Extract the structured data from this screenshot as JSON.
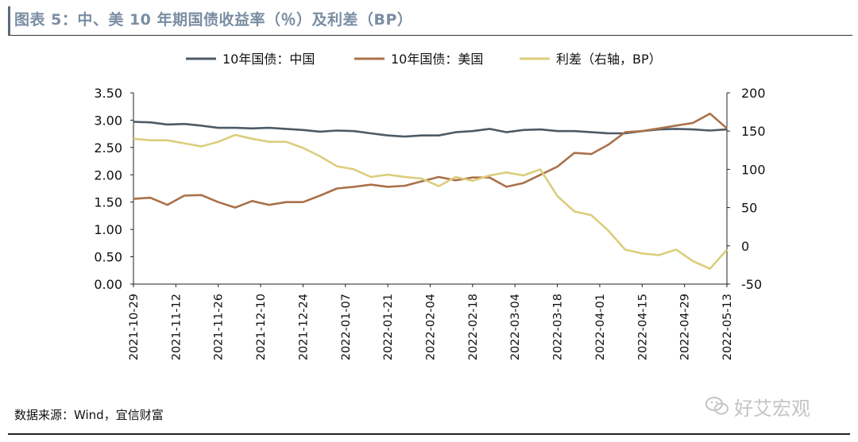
{
  "header": {
    "title": "图表 5：中、美 10 年期国债收益率（％）及利差（BP）"
  },
  "footer": {
    "source": "数据来源：Wind，宜信财富",
    "watermark": "好艾宏观",
    "watermark_icon": "wechat-icon"
  },
  "colors": {
    "china": "#4d5a66",
    "us": "#a9714a",
    "spread": "#dccd7c",
    "axis": "#222222"
  },
  "chart_data": {
    "type": "line",
    "title": "图表 5：中、美 10 年期国债收益率（％）及利差（BP）",
    "legend": [
      "10年国债：中国",
      "10年国债：美国",
      "利差（右轴，BP）"
    ],
    "legend_position": "top-center",
    "grid": false,
    "x_ticks": [
      "2021-10-29",
      "2021-11-12",
      "2021-11-26",
      "2021-12-10",
      "2021-12-24",
      "2022-01-07",
      "2022-01-21",
      "2022-02-04",
      "2022-02-18",
      "2022-03-04",
      "2022-03-18",
      "2022-04-01",
      "2022-04-15",
      "2022-04-29",
      "2022-05-13"
    ],
    "y_left": {
      "min": 0,
      "max": 3.5,
      "ticks": [
        "0.00",
        "0.50",
        "1.00",
        "1.50",
        "2.00",
        "2.50",
        "3.00",
        "3.50"
      ]
    },
    "y_right": {
      "min": -50,
      "max": 200,
      "ticks": [
        "-50",
        "0",
        "50",
        "100",
        "150",
        "200"
      ]
    },
    "series": [
      {
        "name": "10年国债：中国",
        "axis": "left",
        "values": [
          2.97,
          2.96,
          2.92,
          2.93,
          2.9,
          2.86,
          2.86,
          2.85,
          2.86,
          2.84,
          2.82,
          2.79,
          2.81,
          2.8,
          2.76,
          2.72,
          2.7,
          2.72,
          2.72,
          2.78,
          2.8,
          2.84,
          2.78,
          2.82,
          2.83,
          2.8,
          2.8,
          2.78,
          2.76,
          2.76,
          2.8,
          2.83,
          2.84,
          2.83,
          2.81,
          2.83
        ]
      },
      {
        "name": "10年国债：美国",
        "axis": "left",
        "values": [
          1.56,
          1.58,
          1.45,
          1.62,
          1.63,
          1.5,
          1.4,
          1.52,
          1.45,
          1.5,
          1.5,
          1.62,
          1.75,
          1.78,
          1.82,
          1.78,
          1.8,
          1.88,
          1.96,
          1.9,
          1.95,
          1.95,
          1.78,
          1.85,
          2.0,
          2.15,
          2.4,
          2.38,
          2.55,
          2.78,
          2.8,
          2.85,
          2.9,
          2.95,
          3.12,
          2.85
        ]
      },
      {
        "name": "利差（右轴，BP）",
        "axis": "right",
        "values": [
          140,
          138,
          138,
          134,
          130,
          136,
          145,
          140,
          136,
          136,
          128,
          117,
          104,
          100,
          90,
          93,
          90,
          88,
          78,
          90,
          85,
          92,
          96,
          92,
          100,
          65,
          45,
          40,
          20,
          -5,
          -10,
          -12,
          -5,
          -20,
          -30,
          -5
        ]
      }
    ]
  }
}
